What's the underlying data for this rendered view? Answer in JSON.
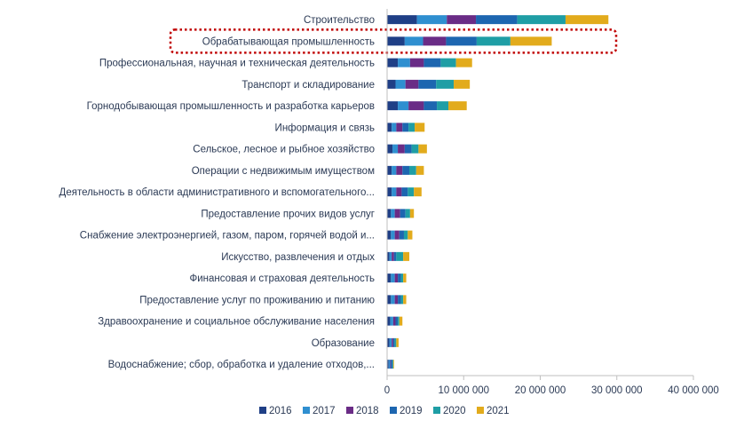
{
  "chart_data": {
    "type": "bar",
    "orientation": "horizontal",
    "stacked": true,
    "categories": [
      "Строительство",
      "Обрабатывающая промышленность",
      "Профессиональная, научная и техническая деятельность",
      "Транспорт и складирование",
      "Горнодобывающая промышленность и разработка карьеров",
      "Информация и связь",
      "Сельское, лесное и рыбное хозяйство",
      "Операции с недвижимым имуществом",
      "Деятельность в области административного и вспомогательного...",
      "Предоставление прочих видов услуг",
      "Снабжение электроэнергией, газом, паром, горячей водой и...",
      "Искусство, развлечения и отдых",
      "Финансовая и страховая деятельность",
      "Предоставление услуг по проживанию и питанию",
      "Здравоохранение и социальное обслуживание населения",
      "Образование",
      "Водоснабжение; сбор, обработка и удаление отходов,..."
    ],
    "series": [
      {
        "name": "2016",
        "color": "#1f3f86",
        "values": [
          3900000,
          2300000,
          1400000,
          1100000,
          1400000,
          600000,
          700000,
          600000,
          600000,
          500000,
          500000,
          300000,
          500000,
          500000,
          400000,
          300000,
          200000
        ]
      },
      {
        "name": "2017",
        "color": "#2f8fd0",
        "values": [
          3900000,
          2400000,
          1600000,
          1300000,
          1400000,
          600000,
          700000,
          600000,
          600000,
          500000,
          500000,
          300000,
          500000,
          500000,
          400000,
          300000,
          200000
        ]
      },
      {
        "name": "2018",
        "color": "#6a2c86",
        "values": [
          3800000,
          3000000,
          1800000,
          1700000,
          2000000,
          800000,
          900000,
          800000,
          700000,
          700000,
          600000,
          300000,
          400000,
          400000,
          300000,
          200000,
          100000
        ]
      },
      {
        "name": "2019",
        "color": "#1d66b0",
        "values": [
          5400000,
          4000000,
          2200000,
          2300000,
          1700000,
          800000,
          900000,
          900000,
          800000,
          700000,
          600000,
          300000,
          400000,
          400000,
          300000,
          200000,
          200000
        ]
      },
      {
        "name": "2020",
        "color": "#1f9ea5",
        "values": [
          6300000,
          4400000,
          2000000,
          2300000,
          1500000,
          800000,
          900000,
          900000,
          800000,
          600000,
          500000,
          900000,
          300000,
          300000,
          200000,
          200000,
          100000
        ]
      },
      {
        "name": "2021",
        "color": "#e2ab1c",
        "values": [
          5600000,
          5400000,
          2100000,
          2100000,
          2400000,
          1300000,
          1100000,
          1000000,
          1000000,
          500000,
          600000,
          800000,
          400000,
          400000,
          400000,
          300000,
          100000
        ]
      }
    ],
    "xlim": [
      0,
      40000000
    ],
    "x_ticks": [
      0,
      10000000,
      20000000,
      30000000,
      40000000
    ],
    "x_tick_labels": [
      "0",
      "10 000 000",
      "20 000 000",
      "30 000 000",
      "40 000 000"
    ],
    "grid": false,
    "legend_position": "bottom",
    "highlighted_category": "Обрабатывающая промышленность",
    "highlight_color": "#c00000"
  }
}
